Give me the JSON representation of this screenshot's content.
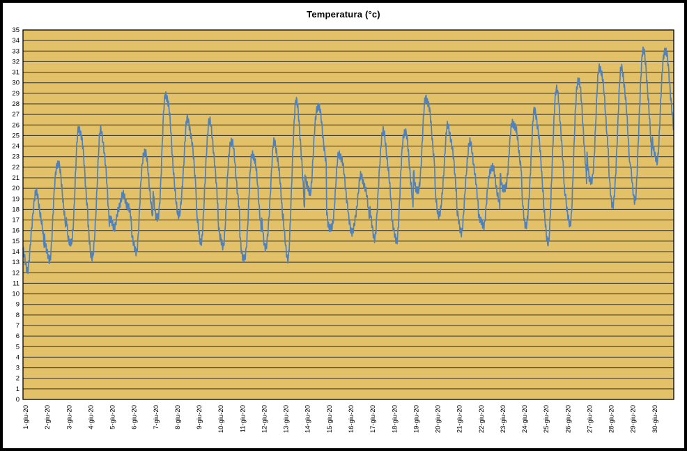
{
  "window": {
    "title": "Temperatura (°c)"
  },
  "chart_data": {
    "type": "line",
    "title": "Temperatura (°c)",
    "xlabel": "",
    "ylabel": "",
    "ylim": [
      0,
      35
    ],
    "y_tick_step": 1,
    "grid": "horizontal",
    "legend": "none",
    "sampling": "sub-daily (intraday readings, one diurnal cycle per day)",
    "colors": {
      "plot_bg": "#E2C169",
      "line": "#4F81BD",
      "grid": "#303030",
      "axis": "#000000",
      "frame": "#000000",
      "background": "#FFFFFF",
      "text": "#000000"
    },
    "categories": [
      "1-giu-20",
      "2-giu-20",
      "3-giu-20",
      "4-giu-20",
      "5-giu-20",
      "6-giu-20",
      "7-giu-20",
      "8-giu-20",
      "9-giu-20",
      "10-giu-20",
      "11-giu-20",
      "12-giu-20",
      "13-giu-20",
      "14-giu-20",
      "15-giu-20",
      "16-giu-20",
      "17-giu-20",
      "18-giu-20",
      "19-giu-20",
      "20-giu-20",
      "21-giu-20",
      "22-giu-20",
      "23-giu-20",
      "24-giu-20",
      "25-giu-20",
      "26-giu-20",
      "27-giu-20",
      "28-giu-20",
      "29-giu-20",
      "30-giu-20"
    ],
    "series": [
      {
        "name": "Temperatura",
        "daily_min": [
          12.5,
          13.2,
          14.5,
          13.5,
          16.5,
          14.0,
          17.0,
          17.5,
          15.0,
          14.5,
          13.2,
          14.5,
          13.5,
          19.5,
          16.0,
          16.0,
          15.5,
          15.0,
          19.5,
          17.5,
          16.0,
          16.5,
          19.8,
          16.5,
          15.0,
          16.5,
          20.5,
          18.5,
          19.0,
          22.5
        ],
        "daily_max": [
          19.5,
          22.5,
          25.8,
          25.4,
          19.2,
          23.5,
          29.0,
          26.5,
          26.3,
          24.5,
          23.3,
          24.3,
          28.2,
          27.9,
          23.3,
          21.0,
          25.3,
          25.5,
          28.7,
          25.8,
          24.2,
          22.0,
          26.3,
          27.3,
          29.3,
          30.3,
          31.5,
          31.3,
          33.0,
          33.2
        ]
      }
    ]
  }
}
